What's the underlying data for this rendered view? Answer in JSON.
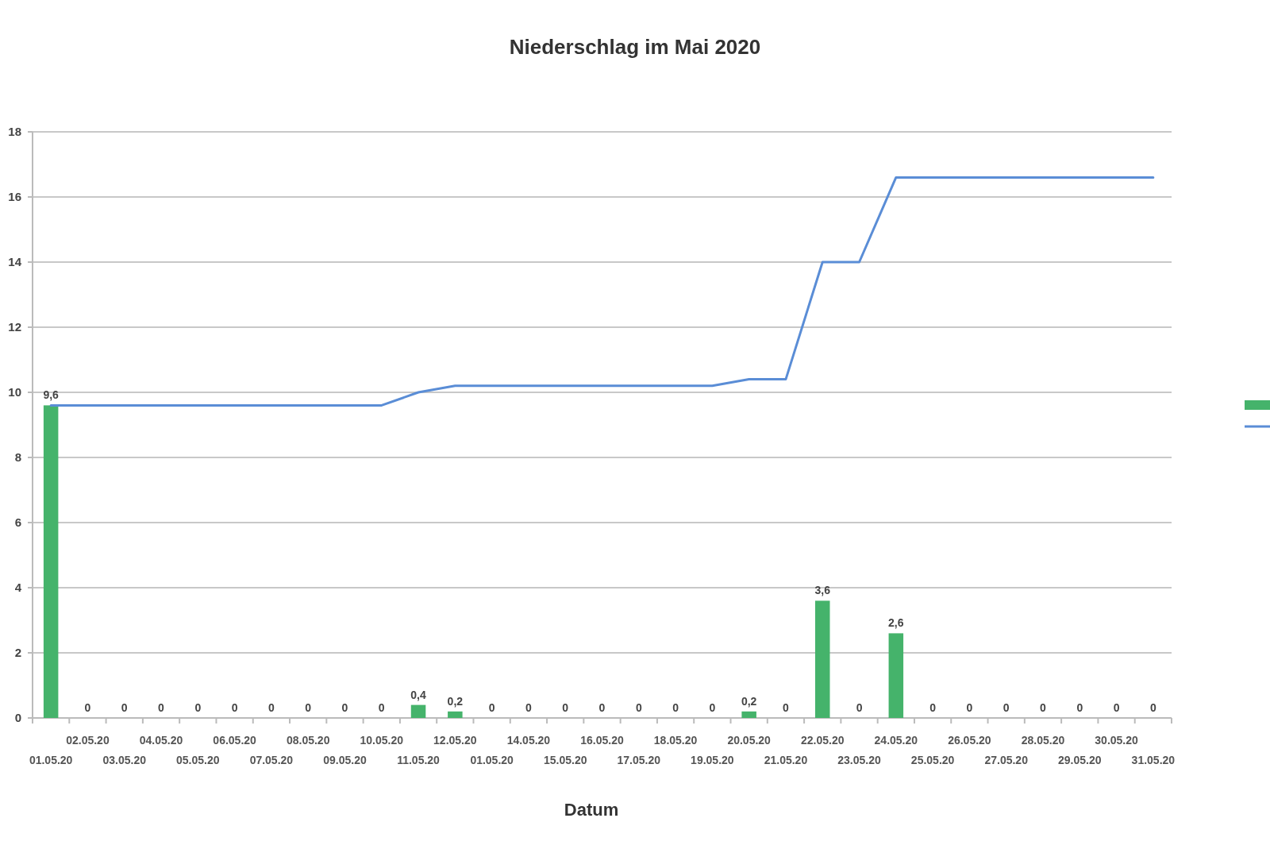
{
  "chart_data": {
    "type": "bar",
    "title": "Niederschlag im Mai 2020",
    "xlabel": "Datum",
    "categories": [
      "01.05.20",
      "02.05.20",
      "03.05.20",
      "04.05.20",
      "05.05.20",
      "06.05.20",
      "07.05.20",
      "08.05.20",
      "09.05.20",
      "10.05.20",
      "11.05.20",
      "12.05.20",
      "01.05.20",
      "14.05.20",
      "15.05.20",
      "16.05.20",
      "17.05.20",
      "18.05.20",
      "19.05.20",
      "20.05.20",
      "21.05.20",
      "22.05.20",
      "23.05.20",
      "24.05.20",
      "25.05.20",
      "26.05.20",
      "27.05.20",
      "28.05.20",
      "29.05.20",
      "30.05.20",
      "31.05.20"
    ],
    "series": [
      {
        "color": "#45b36b",
        "values": [
          9.6,
          0,
          0,
          0,
          0,
          0,
          0,
          0,
          0,
          0,
          0.4,
          0.2,
          0,
          0,
          0,
          0,
          0,
          0,
          0,
          0.2,
          0,
          3.6,
          0,
          2.6,
          0,
          0,
          0,
          0,
          0,
          0,
          0
        ],
        "value_labels": [
          "9,6",
          "0",
          "0",
          "0",
          "0",
          "0",
          "0",
          "0",
          "0",
          "0",
          "0,4",
          "0,2",
          "0",
          "0",
          "0",
          "0",
          "0",
          "0",
          "0",
          "0,2",
          "0",
          "3,6",
          "0",
          "2,6",
          "0",
          "0",
          "0",
          "0",
          "0",
          "0",
          "0"
        ]
      },
      {
        "type": "line",
        "color": "#5a8dd6",
        "values": [
          9.6,
          9.6,
          9.6,
          9.6,
          9.6,
          9.6,
          9.6,
          9.6,
          9.6,
          9.6,
          10.0,
          10.2,
          10.2,
          10.2,
          10.2,
          10.2,
          10.2,
          10.2,
          10.2,
          10.4,
          10.4,
          14.0,
          14.0,
          16.6,
          16.6,
          16.6,
          16.6,
          16.6,
          16.6,
          16.6,
          16.6
        ]
      }
    ],
    "ylim": [
      0,
      18
    ],
    "yticks": [
      0,
      2,
      4,
      6,
      8,
      10,
      12,
      14,
      16,
      18
    ],
    "grid": "y"
  }
}
